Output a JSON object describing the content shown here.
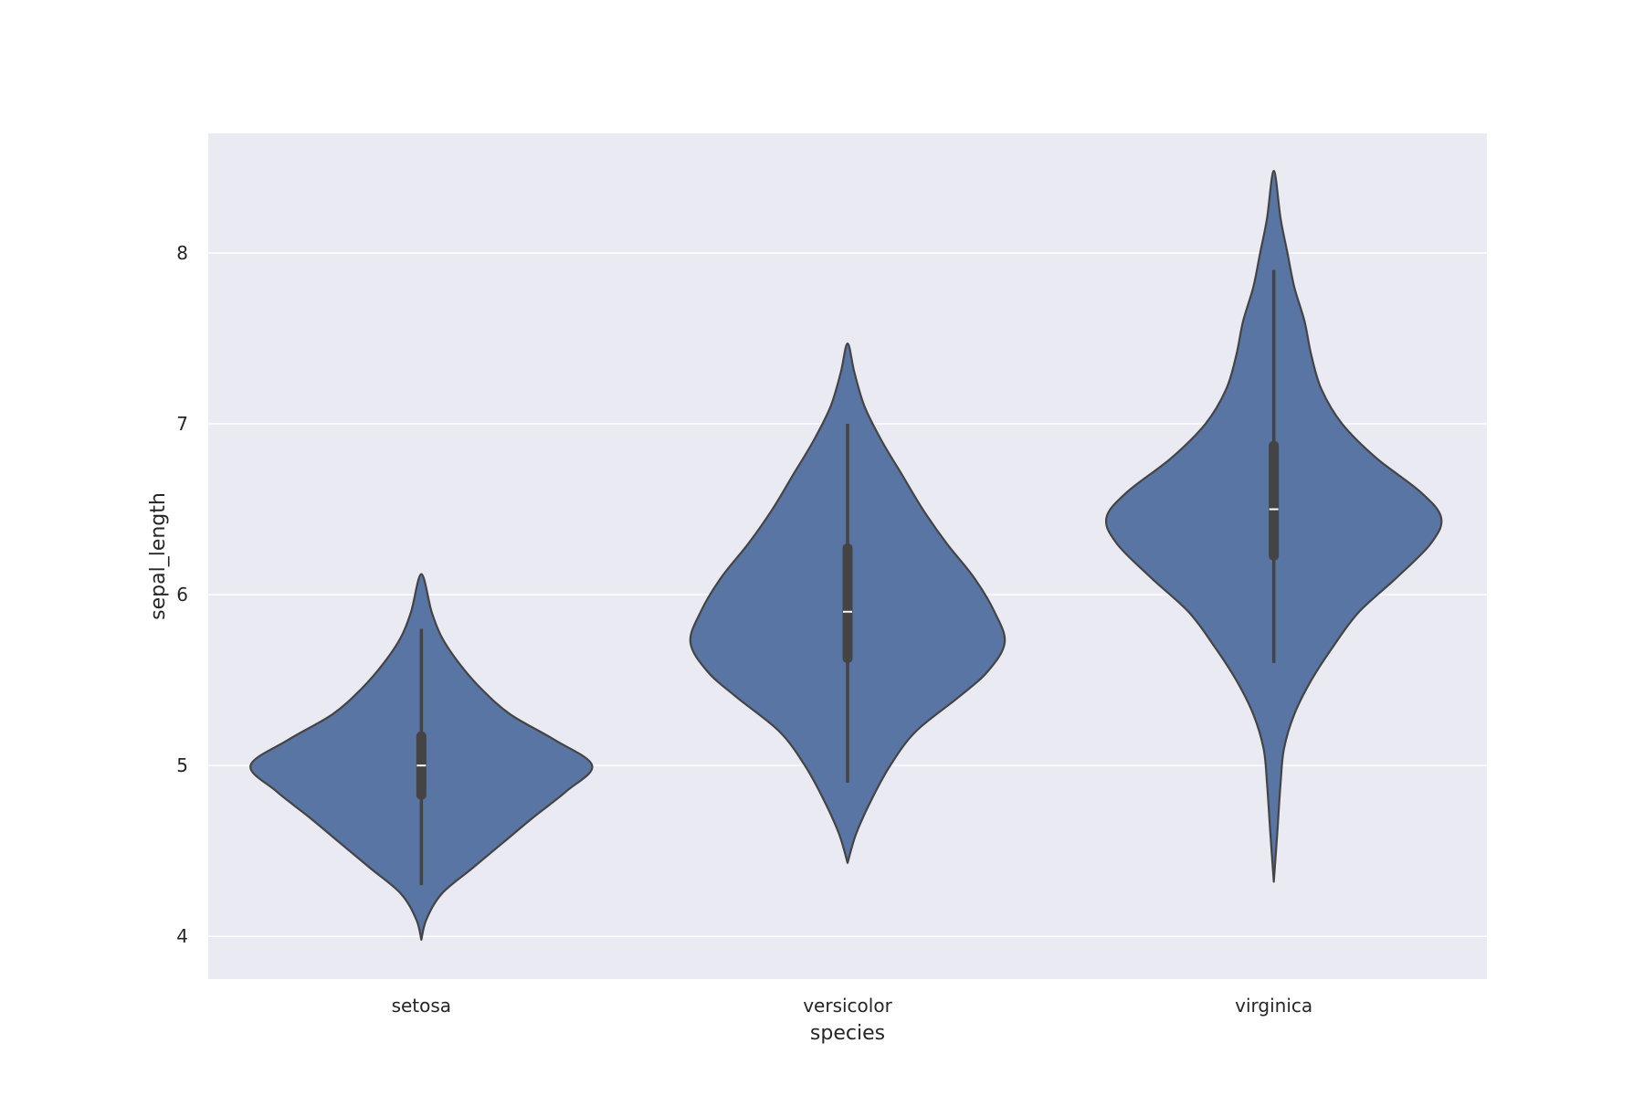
{
  "chart_data": {
    "type": "violin",
    "xlabel": "species",
    "ylabel": "sepal_length",
    "categories": [
      "setosa",
      "versicolor",
      "virginica"
    ],
    "yticks": [
      4,
      5,
      6,
      7,
      8
    ],
    "ylim": [
      3.75,
      8.7
    ],
    "grid": true,
    "colors": {
      "background": "#ffffff",
      "plot_area": "#eaeaf2",
      "grid": "#ffffff",
      "violin_fill": "#5875a4",
      "violin_edge": "#444444",
      "box": "#444444",
      "median": "#ffffff",
      "text": "#262626"
    },
    "violins": [
      {
        "category": "setosa",
        "min": 4.3,
        "q1": 4.8,
        "median": 5.0,
        "q3": 5.2,
        "max": 5.8,
        "density": [
          [
            3.98,
            0.0
          ],
          [
            4.1,
            0.03
          ],
          [
            4.25,
            0.12
          ],
          [
            4.4,
            0.3
          ],
          [
            4.55,
            0.48
          ],
          [
            4.7,
            0.66
          ],
          [
            4.85,
            0.85
          ],
          [
            5.0,
            1.0
          ],
          [
            5.15,
            0.78
          ],
          [
            5.3,
            0.52
          ],
          [
            5.45,
            0.35
          ],
          [
            5.6,
            0.22
          ],
          [
            5.75,
            0.12
          ],
          [
            5.9,
            0.06
          ],
          [
            6.12,
            0.0
          ]
        ]
      },
      {
        "category": "versicolor",
        "min": 4.9,
        "q1": 5.6,
        "median": 5.9,
        "q3": 6.3,
        "max": 7.0,
        "density": [
          [
            4.43,
            0.0
          ],
          [
            4.6,
            0.05
          ],
          [
            4.8,
            0.14
          ],
          [
            5.0,
            0.25
          ],
          [
            5.2,
            0.4
          ],
          [
            5.4,
            0.65
          ],
          [
            5.55,
            0.82
          ],
          [
            5.72,
            0.92
          ],
          [
            5.9,
            0.86
          ],
          [
            6.1,
            0.74
          ],
          [
            6.3,
            0.58
          ],
          [
            6.5,
            0.44
          ],
          [
            6.7,
            0.32
          ],
          [
            6.9,
            0.2
          ],
          [
            7.1,
            0.1
          ],
          [
            7.3,
            0.04
          ],
          [
            7.47,
            0.0
          ]
        ]
      },
      {
        "category": "virginica",
        "min": 5.6,
        "q1": 6.2,
        "median": 6.5,
        "q3": 6.9,
        "max": 7.9,
        "density": [
          [
            4.32,
            0.0
          ],
          [
            4.6,
            0.02
          ],
          [
            4.9,
            0.04
          ],
          [
            5.1,
            0.06
          ],
          [
            5.3,
            0.12
          ],
          [
            5.5,
            0.22
          ],
          [
            5.7,
            0.35
          ],
          [
            5.9,
            0.5
          ],
          [
            6.1,
            0.72
          ],
          [
            6.3,
            0.92
          ],
          [
            6.45,
            0.98
          ],
          [
            6.6,
            0.86
          ],
          [
            6.8,
            0.6
          ],
          [
            7.0,
            0.4
          ],
          [
            7.2,
            0.28
          ],
          [
            7.4,
            0.22
          ],
          [
            7.6,
            0.18
          ],
          [
            7.8,
            0.12
          ],
          [
            8.0,
            0.08
          ],
          [
            8.2,
            0.04
          ],
          [
            8.48,
            0.0
          ]
        ]
      }
    ]
  }
}
